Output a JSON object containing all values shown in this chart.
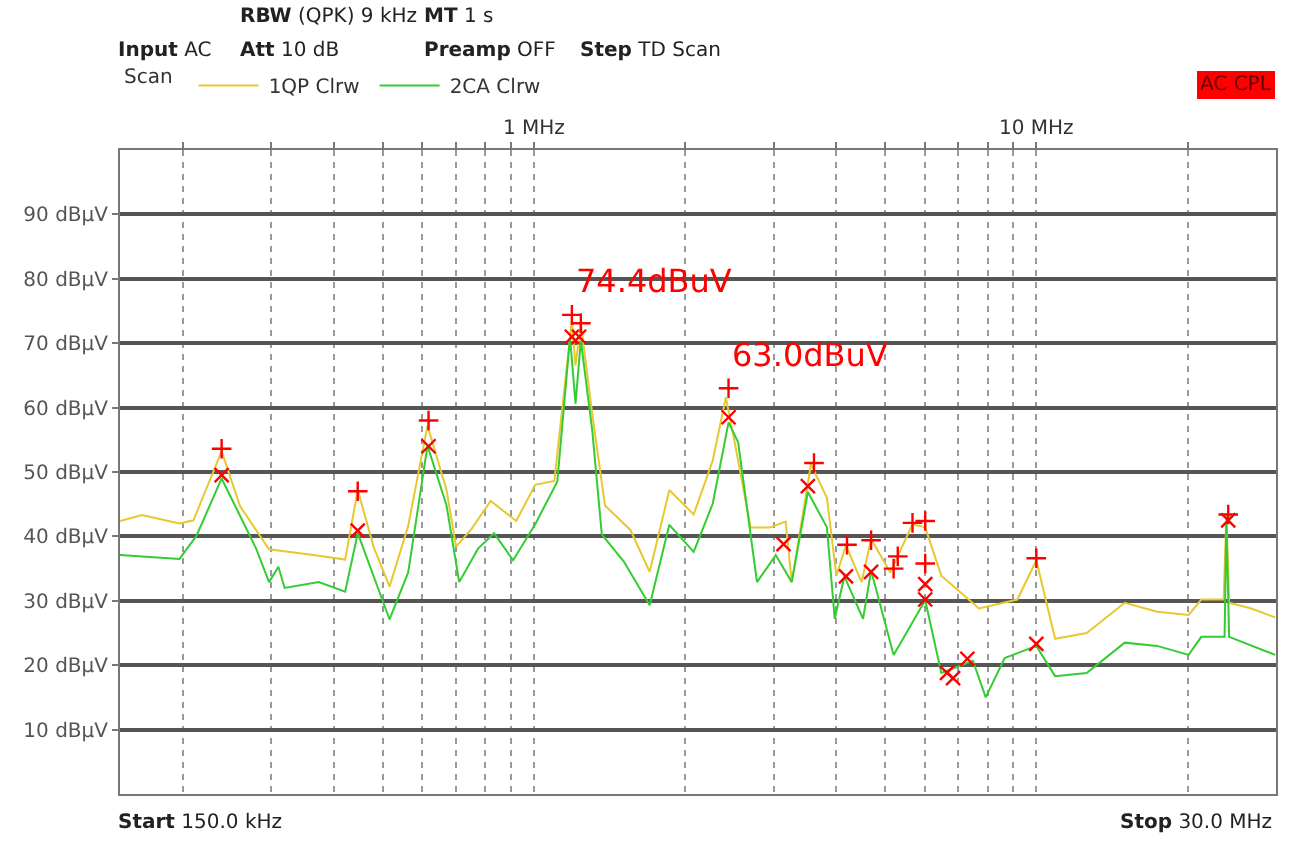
{
  "chart_data": {
    "type": "line",
    "legend_title": "Scan",
    "annotations": [
      "RBW (QPK) 9 kHz",
      "MT 1 s",
      "Input AC",
      "Att 10 dB",
      "Preamp OFF",
      "Step TD Scan",
      "AC CPL",
      "Start 150.0 kHz",
      "Stop 30.0 MHz",
      {
        "text": "74.4dBuV",
        "x": 1.19,
        "y": 74.4
      },
      {
        "text": "63.0dBuV",
        "x": 2.44,
        "y": 63.0
      }
    ],
    "log": "x",
    "grid": true,
    "legend": "top left",
    "xlim": [
      0.15,
      30
    ],
    "ylim": [
      0,
      100
    ],
    "xticks": [
      {
        "value": 0.2,
        "label": null
      },
      {
        "value": 0.3,
        "label": null
      },
      {
        "value": 0.4,
        "label": null
      },
      {
        "value": 0.5,
        "label": null
      },
      {
        "value": 0.6,
        "label": null
      },
      {
        "value": 0.7,
        "label": null
      },
      {
        "value": 0.8,
        "label": null
      },
      {
        "value": 0.9,
        "label": null
      },
      {
        "value": 1,
        "label": "1 MHz"
      },
      {
        "value": 2,
        "label": null
      },
      {
        "value": 3,
        "label": null
      },
      {
        "value": 4,
        "label": null
      },
      {
        "value": 5,
        "label": null
      },
      {
        "value": 6,
        "label": null
      },
      {
        "value": 7,
        "label": null
      },
      {
        "value": 8,
        "label": null
      },
      {
        "value": 9,
        "label": null
      },
      {
        "value": 10,
        "label": "10 MHz"
      },
      {
        "value": 20,
        "label": null
      }
    ],
    "yticks": [
      {
        "value": 10,
        "label": "10 dBµV"
      },
      {
        "value": 20,
        "label": "20 dBµV"
      },
      {
        "value": 30,
        "label": "30 dBµV"
      },
      {
        "value": 40,
        "label": "40 dBµV"
      },
      {
        "value": 50,
        "label": "50 dBµV"
      },
      {
        "value": 60,
        "label": "60 dBµV"
      },
      {
        "value": 70,
        "label": "70 dBµV"
      },
      {
        "value": 80,
        "label": "80 dBµV"
      },
      {
        "value": 90,
        "label": "90 dBµV"
      }
    ],
    "series": [
      {
        "name": "1QP Clrw",
        "color": "#e6c830",
        "x": [
          0.15,
          0.166,
          0.197,
          0.21,
          0.239,
          0.26,
          0.297,
          0.333,
          0.373,
          0.421,
          0.446,
          0.48,
          0.516,
          0.562,
          0.614,
          0.67,
          0.7,
          0.752,
          0.82,
          0.922,
          1.006,
          1.098,
          1.19,
          1.21,
          1.24,
          1.307,
          1.385,
          1.556,
          1.7,
          1.86,
          2.08,
          2.27,
          2.41,
          2.51,
          2.7,
          2.95,
          3.17,
          3.26,
          3.56,
          3.83,
          4.0,
          4.18,
          4.49,
          4.69,
          5.12,
          5.67,
          6.01,
          6.47,
          7.69,
          9.17,
          10,
          10.9,
          12.6,
          15.0,
          17.4,
          20.1,
          21.3,
          23.6,
          23.9,
          24.2,
          26.8,
          29.9
        ],
        "values": [
          42.4,
          43.3,
          42,
          42.5,
          53.2,
          44.7,
          38,
          37.5,
          37,
          36.4,
          47.2,
          38.3,
          32.2,
          41.6,
          57.2,
          47.2,
          38.4,
          41.2,
          45.5,
          42.4,
          48,
          48.6,
          73.6,
          66.5,
          73,
          58.9,
          44.8,
          41,
          34.5,
          47.2,
          43.4,
          51.8,
          61.6,
          54.6,
          41.4,
          41.4,
          42.3,
          32.9,
          51.2,
          46,
          33.9,
          38.6,
          32.9,
          39.6,
          34.4,
          41.9,
          41.4,
          33.9,
          28.8,
          30.2,
          36.3,
          24.1,
          25,
          29.7,
          28.3,
          27.8,
          30.2,
          30.2,
          43.4,
          29.7,
          28.8,
          27.4
        ]
      },
      {
        "name": "2CA Clrw",
        "color": "#33cc33",
        "x": [
          0.15,
          0.197,
          0.213,
          0.239,
          0.28,
          0.297,
          0.31,
          0.319,
          0.373,
          0.421,
          0.446,
          0.516,
          0.562,
          0.614,
          0.67,
          0.71,
          0.774,
          0.833,
          0.909,
          1.006,
          1.113,
          1.18,
          1.21,
          1.24,
          1.307,
          1.365,
          1.51,
          1.7,
          1.86,
          2.08,
          2.27,
          2.44,
          2.55,
          2.78,
          3.03,
          3.26,
          3.51,
          3.83,
          3.97,
          4.15,
          4.52,
          4.69,
          5.2,
          6.01,
          6.47,
          7.48,
          7.93,
          8.65,
          10,
          10.9,
          12.6,
          15.0,
          17.4,
          20.1,
          21.3,
          23.7,
          23.9,
          24.2,
          29.9
        ],
        "values": [
          37.1,
          36.5,
          40.1,
          49,
          38.1,
          32.9,
          35.3,
          32,
          32.9,
          31.4,
          40.5,
          27.1,
          34.4,
          54.1,
          44.8,
          32.9,
          38.1,
          40.5,
          36.3,
          41.9,
          48.5,
          70.9,
          60.6,
          70.4,
          56.3,
          40.3,
          36.1,
          29.3,
          41.8,
          37.6,
          45.1,
          57.7,
          54.6,
          32.9,
          37.1,
          32.9,
          46.9,
          41.4,
          27.2,
          33.8,
          27.2,
          34.7,
          21.6,
          30.1,
          18.8,
          20.7,
          15,
          21.1,
          23,
          18.3,
          18.8,
          23.5,
          23,
          21.6,
          24.4,
          24.4,
          42.3,
          24.4,
          21.6
        ]
      },
      {
        "type": "scatter",
        "marker": "cross",
        "color": "#ff0000",
        "x": [
          0.239,
          0.446,
          0.617,
          1.19,
          1.24,
          2.44,
          3.61,
          4.2,
          4.69,
          5.2,
          5.3,
          5.67,
          6.01,
          6.01,
          10,
          24.1
        ],
        "values": [
          53.6,
          47,
          58,
          74.4,
          73.1,
          63,
          51.4,
          38.7,
          39.4,
          35,
          36.9,
          42.1,
          42.4,
          35.8,
          36.6,
          43.4
        ]
      },
      {
        "type": "scatter",
        "marker": "x",
        "color": "#ff0000",
        "x": [
          0.239,
          0.446,
          0.617,
          1.19,
          1.23,
          2.44,
          3.14,
          3.51,
          4.18,
          4.69,
          6.01,
          6.01,
          6.64,
          6.83,
          7.29,
          10,
          24.1
        ],
        "values": [
          49.5,
          40.9,
          54,
          71,
          71,
          58.5,
          38.8,
          47.8,
          33.8,
          34.5,
          32.6,
          30.2,
          18.8,
          18,
          21,
          23.3,
          42.5
        ]
      }
    ]
  }
}
